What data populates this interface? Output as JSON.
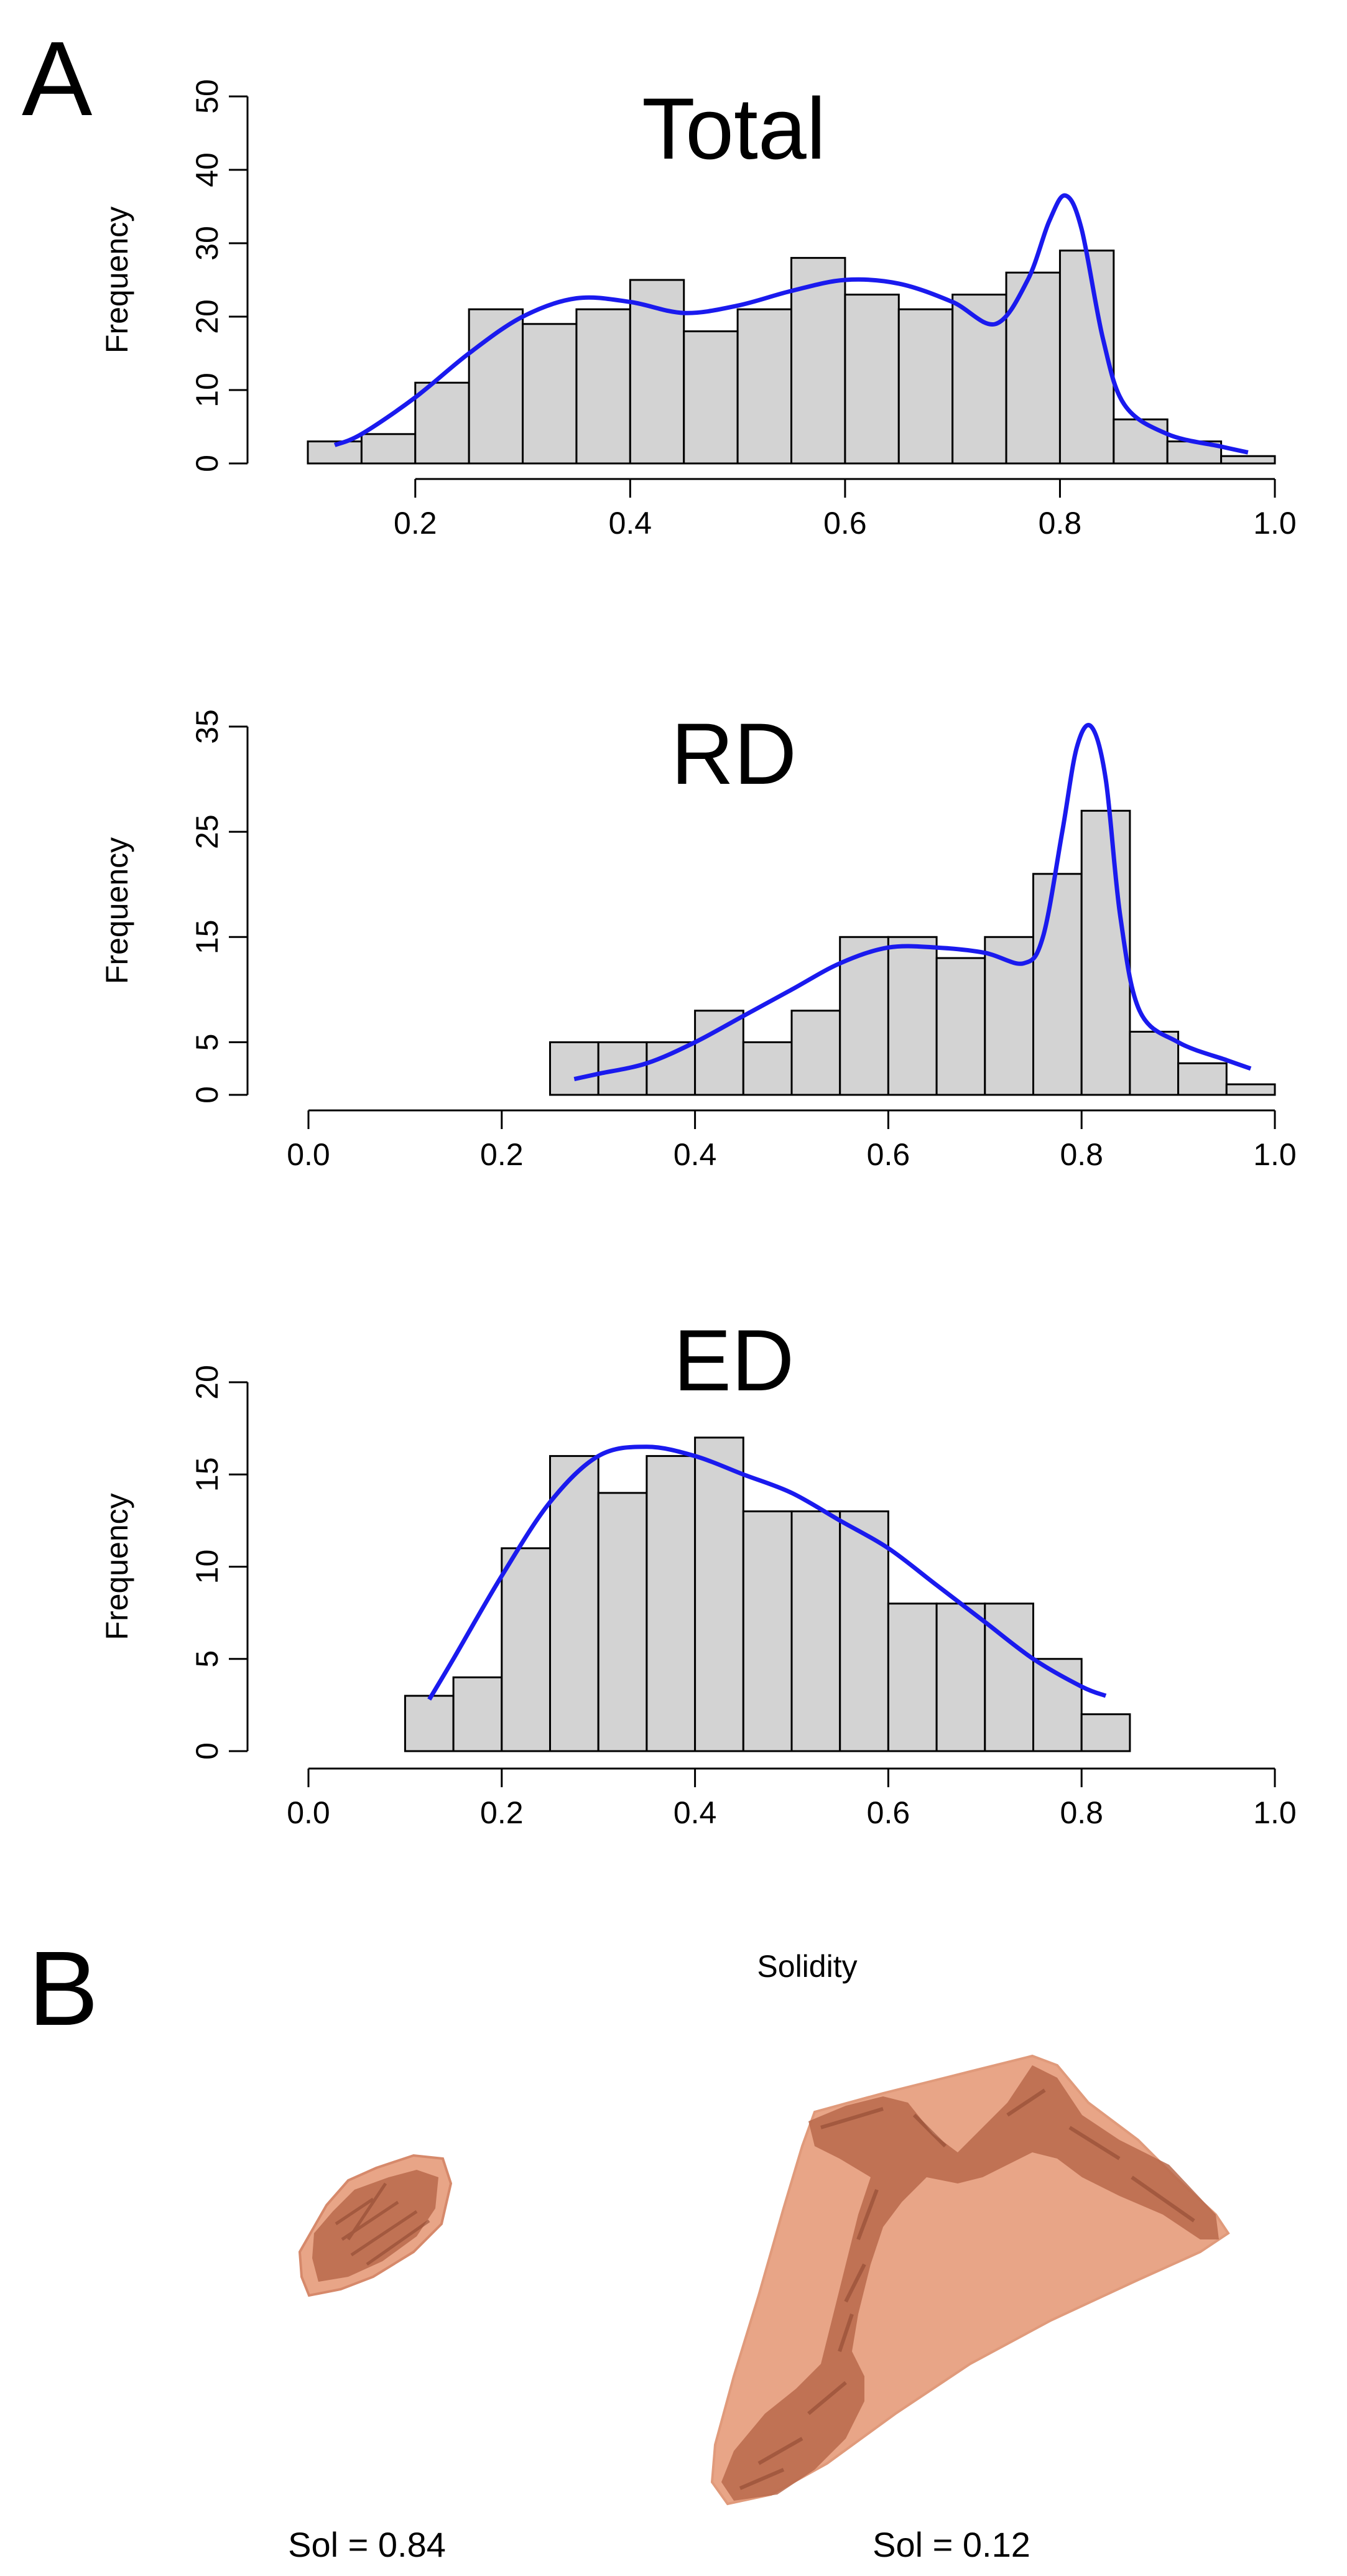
{
  "panels": {
    "a_label": "A",
    "b_label": "B"
  },
  "axis": {
    "ylabel": "Frequency",
    "xlabel": "Solidity"
  },
  "colors": {
    "bar_fill": "#d3d3d3",
    "bar_stroke": "#000000",
    "density": "#1a1aee",
    "shape_light": "#e8a587",
    "shape_dark": "#b8694b"
  },
  "chart_data": [
    {
      "type": "bar",
      "title": "Total",
      "ylabel": "Frequency",
      "bin_width": 0.05,
      "bin_starts": [
        0.1,
        0.15,
        0.2,
        0.25,
        0.3,
        0.35,
        0.4,
        0.45,
        0.5,
        0.55,
        0.6,
        0.65,
        0.7,
        0.75,
        0.8,
        0.85,
        0.9,
        0.95
      ],
      "values": [
        3,
        4,
        11,
        21,
        19,
        21,
        25,
        18,
        21,
        28,
        23,
        21,
        23,
        26,
        29,
        6,
        3,
        1
      ],
      "xlim": [
        0.1,
        1.0
      ],
      "ylim": [
        0,
        50
      ],
      "xticks": [
        "0.2",
        "0.4",
        "0.6",
        "0.8",
        "1.0"
      ],
      "yticks": [
        "0",
        "10",
        "20",
        "30",
        "40",
        "50"
      ],
      "density": {
        "x": [
          0.125,
          0.15,
          0.2,
          0.25,
          0.3,
          0.35,
          0.4,
          0.45,
          0.5,
          0.55,
          0.6,
          0.65,
          0.7,
          0.74,
          0.77,
          0.79,
          0.805,
          0.82,
          0.84,
          0.86,
          0.9,
          0.95,
          0.975
        ],
        "y": [
          2.5,
          4,
          9,
          15,
          20,
          22.5,
          22,
          20.5,
          21.5,
          23.5,
          25,
          24.5,
          22,
          19,
          25,
          33,
          36.5,
          32,
          17,
          8,
          4,
          2.3,
          1.5
        ]
      }
    },
    {
      "type": "bar",
      "title": "RD",
      "ylabel": "Frequency",
      "bin_width": 0.05,
      "bin_starts": [
        0.25,
        0.3,
        0.35,
        0.4,
        0.45,
        0.5,
        0.55,
        0.6,
        0.65,
        0.7,
        0.75,
        0.8,
        0.85,
        0.9,
        0.95
      ],
      "values": [
        5,
        5,
        5,
        8,
        5,
        8,
        15,
        15,
        13,
        15,
        21,
        27,
        6,
        3,
        1
      ],
      "xlim": [
        0.0,
        1.0
      ],
      "ylim": [
        0,
        35
      ],
      "xticks": [
        "0.0",
        "0.2",
        "0.4",
        "0.6",
        "0.8",
        "1.0"
      ],
      "yticks": [
        "0",
        "5",
        "15",
        "25",
        "35"
      ],
      "density": {
        "x": [
          0.275,
          0.3,
          0.35,
          0.4,
          0.45,
          0.5,
          0.55,
          0.6,
          0.65,
          0.7,
          0.74,
          0.76,
          0.78,
          0.795,
          0.81,
          0.825,
          0.84,
          0.86,
          0.9,
          0.95,
          0.975
        ],
        "y": [
          1.5,
          2,
          3,
          5,
          7.5,
          10,
          12.5,
          14,
          14,
          13.5,
          12.5,
          15,
          25,
          33,
          35,
          30,
          17,
          8,
          5,
          3.3,
          2.5
        ]
      }
    },
    {
      "type": "bar",
      "title": "ED",
      "ylabel": "Frequency",
      "bin_width": 0.05,
      "bin_starts": [
        0.1,
        0.15,
        0.2,
        0.25,
        0.3,
        0.35,
        0.4,
        0.45,
        0.5,
        0.55,
        0.6,
        0.65,
        0.7,
        0.75,
        0.8
      ],
      "values": [
        3,
        4,
        11,
        16,
        14,
        16,
        17,
        13,
        13,
        13,
        8,
        8,
        8,
        5,
        2
      ],
      "xlim": [
        0.0,
        1.0
      ],
      "ylim": [
        0,
        20
      ],
      "xticks": [
        "0.0",
        "0.2",
        "0.4",
        "0.6",
        "0.8",
        "1.0"
      ],
      "yticks": [
        "0",
        "5",
        "10",
        "15",
        "20"
      ],
      "density": {
        "x": [
          0.125,
          0.15,
          0.2,
          0.25,
          0.3,
          0.35,
          0.4,
          0.45,
          0.5,
          0.55,
          0.6,
          0.65,
          0.7,
          0.75,
          0.8,
          0.825
        ],
        "y": [
          2.8,
          5,
          9.5,
          13.5,
          16,
          16.5,
          16,
          15,
          14,
          12.5,
          11,
          9,
          7,
          5,
          3.5,
          3
        ]
      }
    }
  ],
  "shapes": [
    {
      "label": "Sol = 0.84"
    },
    {
      "label": "Sol = 0.12"
    }
  ]
}
